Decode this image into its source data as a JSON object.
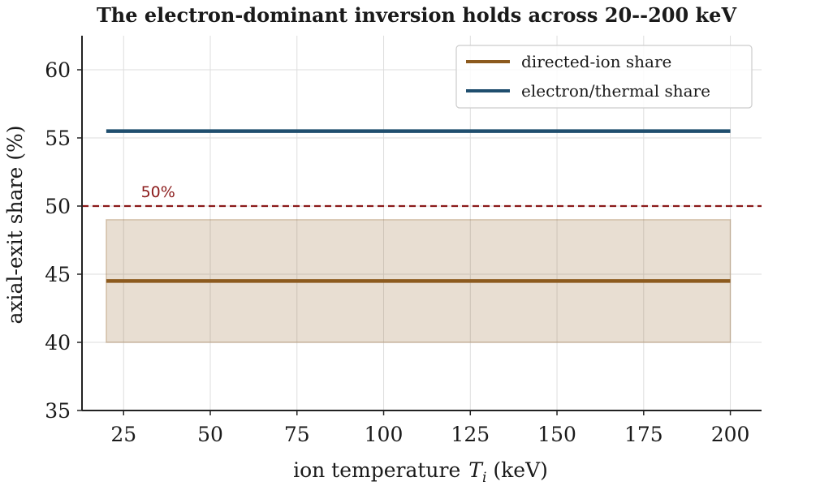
{
  "chart_data": {
    "type": "line",
    "title": "The electron-dominant inversion holds across 20--200 keV",
    "xlabel": "ion temperature",
    "xlabel_symbol": "T",
    "xlabel_subscript": "i",
    "xlabel_unit": "(keV)",
    "ylabel": "axial-exit share (%)",
    "xlim": [
      13,
      209
    ],
    "ylim": [
      35,
      62.5
    ],
    "xticks": [
      25,
      50,
      75,
      100,
      125,
      150,
      175,
      200
    ],
    "yticks": [
      35,
      40,
      45,
      50,
      55,
      60
    ],
    "grid": true,
    "legend_position": "top-right",
    "series": [
      {
        "name": "directed-ion share",
        "x": [
          20,
          200
        ],
        "y": [
          44.5,
          44.5
        ],
        "color": "#8c5a1e"
      },
      {
        "name": "electron/thermal share",
        "x": [
          20,
          200
        ],
        "y": [
          55.5,
          55.5
        ],
        "color": "#1f4e6e"
      }
    ],
    "band": {
      "x": [
        20,
        200
      ],
      "y_low": 40,
      "y_high": 49,
      "color": "#8c5a1e"
    },
    "reference_line": {
      "y": 50,
      "label": "50%",
      "label_x": 30,
      "color": "#8b1a1a"
    }
  }
}
